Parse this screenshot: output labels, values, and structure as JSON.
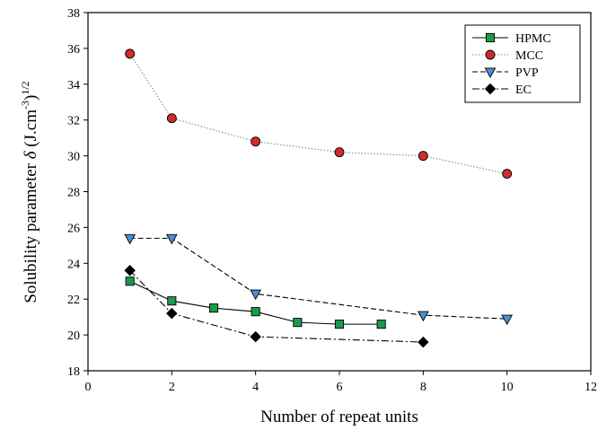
{
  "chart_data": {
    "type": "line",
    "xlabel": "Number of repeat units",
    "ylabel": {
      "main": "Solubility parameter ",
      "symbol": "δ",
      "unit_open": " (J.cm",
      "unit_exp": "-3",
      "unit_close": ")",
      "outer_exp": "1/2"
    },
    "xlim": [
      0,
      12
    ],
    "ylim": [
      18,
      38
    ],
    "xticks": [
      0,
      2,
      4,
      6,
      8,
      10,
      12
    ],
    "yticks": [
      18,
      20,
      22,
      24,
      26,
      28,
      30,
      32,
      34,
      36,
      38
    ],
    "grid": false,
    "legend_position": "top-right",
    "series": [
      {
        "name": "HPMC",
        "color": "#000000",
        "marker": "square",
        "marker_color": "#1a9a4a",
        "dash": "solid",
        "points": [
          [
            1,
            23.0
          ],
          [
            2,
            21.9
          ],
          [
            3,
            21.5
          ],
          [
            4,
            21.3
          ],
          [
            5,
            20.7
          ],
          [
            6,
            20.6
          ],
          [
            7,
            20.6
          ]
        ]
      },
      {
        "name": "MCC",
        "color": "#5f93b5",
        "marker": "circle",
        "marker_color": "#d42a2a",
        "dash": "dotted",
        "points": [
          [
            1,
            35.7
          ],
          [
            2,
            32.1
          ],
          [
            4,
            30.8
          ],
          [
            6,
            30.2
          ],
          [
            8,
            30.0
          ],
          [
            10,
            29.0
          ]
        ]
      },
      {
        "name": "PVP",
        "color": "#000000",
        "marker": "triangle-down",
        "marker_color": "#4a90d9",
        "dash": "dashed",
        "points": [
          [
            1,
            25.4
          ],
          [
            2,
            25.4
          ],
          [
            4,
            22.3
          ],
          [
            8,
            21.1
          ],
          [
            10,
            20.9
          ]
        ]
      },
      {
        "name": "EC",
        "color": "#000000",
        "marker": "diamond",
        "marker_color": "#000000",
        "dash": "dashdot",
        "points": [
          [
            1,
            23.6
          ],
          [
            2,
            21.2
          ],
          [
            4,
            19.9
          ],
          [
            8,
            19.6
          ]
        ]
      }
    ]
  }
}
